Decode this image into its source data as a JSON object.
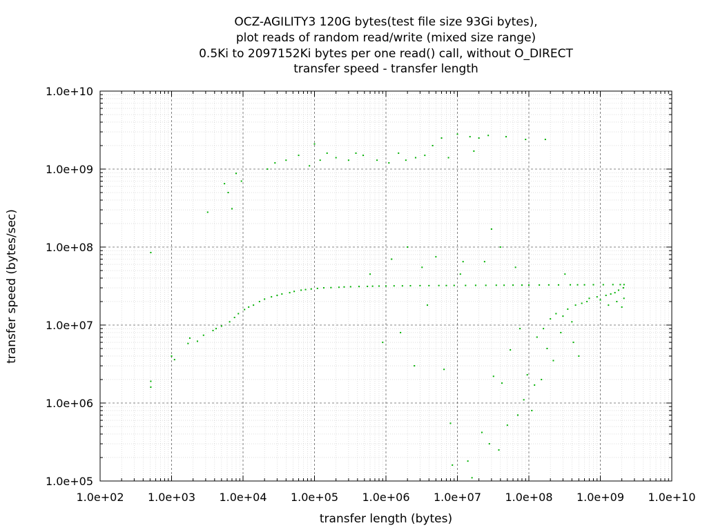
{
  "chart_data": {
    "type": "scatter",
    "title_lines": [
      "OCZ-AGILITY3 120G bytes(test file size 93Gi bytes),",
      "plot reads of random read/write (mixed size range)",
      "0.5Ki to 2097152Ki bytes per one read() call, without O_DIRECT",
      "transfer speed - transfer length"
    ],
    "xlabel": "transfer length (bytes)",
    "ylabel": "transfer speed (bytes/sec)",
    "x_scale": "log",
    "y_scale": "log",
    "xlim": [
      100,
      10000000000
    ],
    "ylim": [
      100000,
      10000000000
    ],
    "x_ticks": [
      {
        "value": 100,
        "label": "1.0e+02"
      },
      {
        "value": 1000,
        "label": "1.0e+03"
      },
      {
        "value": 10000,
        "label": "1.0e+04"
      },
      {
        "value": 100000,
        "label": "1.0e+05"
      },
      {
        "value": 1000000,
        "label": "1.0e+06"
      },
      {
        "value": 10000000,
        "label": "1.0e+07"
      },
      {
        "value": 100000000,
        "label": "1.0e+08"
      },
      {
        "value": 1000000000,
        "label": "1.0e+09"
      },
      {
        "value": 10000000000,
        "label": "1.0e+10"
      }
    ],
    "y_ticks": [
      {
        "value": 100000,
        "label": "1.0e+05"
      },
      {
        "value": 1000000,
        "label": "1.0e+06"
      },
      {
        "value": 10000000,
        "label": "1.0e+07"
      },
      {
        "value": 100000000,
        "label": "1.0e+08"
      },
      {
        "value": 1000000000,
        "label": "1.0e+09"
      },
      {
        "value": 10000000000,
        "label": "1.0e+10"
      }
    ],
    "grid": true,
    "minor_grid": true,
    "legend": "none",
    "marker_color": "#00b000",
    "points": [
      [
        512,
        85000000
      ],
      [
        512,
        1900000
      ],
      [
        512,
        1600000
      ],
      [
        1000,
        4000000
      ],
      [
        1100,
        3600000
      ],
      [
        1700,
        5800000
      ],
      [
        1800,
        6800000
      ],
      [
        2300,
        6200000
      ],
      [
        2800,
        7400000
      ],
      [
        3200,
        280000000
      ],
      [
        3800,
        8500000
      ],
      [
        4200,
        9000000
      ],
      [
        5000,
        9700000
      ],
      [
        5500,
        650000000
      ],
      [
        6200,
        500000000
      ],
      [
        6500,
        11000000
      ],
      [
        7000,
        310000000
      ],
      [
        7600,
        12500000
      ],
      [
        8000,
        880000000
      ],
      [
        8600,
        14000000
      ],
      [
        9500,
        700000000
      ],
      [
        10500,
        15800000
      ],
      [
        12000,
        17000000
      ],
      [
        14000,
        18000000
      ],
      [
        17000,
        20000000
      ],
      [
        20000,
        21500000
      ],
      [
        22000,
        1000000000
      ],
      [
        25000,
        23000000
      ],
      [
        28000,
        1200000000
      ],
      [
        30000,
        24000000
      ],
      [
        35000,
        25000000
      ],
      [
        40000,
        1300000000
      ],
      [
        45000,
        26000000
      ],
      [
        52000,
        27000000
      ],
      [
        60000,
        1500000000
      ],
      [
        65000,
        28000000
      ],
      [
        75000,
        28500000
      ],
      [
        85000,
        1100000000
      ],
      [
        90000,
        29000000
      ],
      [
        100000,
        2100000000
      ],
      [
        110000,
        29500000
      ],
      [
        120000,
        1300000000
      ],
      [
        135000,
        30000000
      ],
      [
        150000,
        1600000000
      ],
      [
        170000,
        30200000
      ],
      [
        200000,
        1400000000
      ],
      [
        220000,
        30500000
      ],
      [
        260000,
        30800000
      ],
      [
        300000,
        1300000000
      ],
      [
        320000,
        31000000
      ],
      [
        380000,
        1600000000
      ],
      [
        420000,
        31200000
      ],
      [
        480000,
        1500000000
      ],
      [
        550000,
        31300000
      ],
      [
        600000,
        45000000
      ],
      [
        650000,
        31500000
      ],
      [
        750000,
        1300000000
      ],
      [
        800000,
        31600000
      ],
      [
        900000,
        6000000
      ],
      [
        1000000,
        31700000
      ],
      [
        1100000,
        1200000000
      ],
      [
        1200000,
        70000000
      ],
      [
        1300000,
        31800000
      ],
      [
        1500000,
        1600000000
      ],
      [
        1600000,
        8000000
      ],
      [
        1700000,
        31800000
      ],
      [
        1900000,
        1300000000
      ],
      [
        2000000,
        100000000
      ],
      [
        2200000,
        31900000
      ],
      [
        2500000,
        3000000
      ],
      [
        2600000,
        1400000000
      ],
      [
        3000000,
        32000000
      ],
      [
        3200000,
        55000000
      ],
      [
        3500000,
        1500000000
      ],
      [
        3800000,
        18000000
      ],
      [
        4000000,
        32000000
      ],
      [
        4500000,
        2000000000
      ],
      [
        5000000,
        75000000
      ],
      [
        5500000,
        32100000
      ],
      [
        6000000,
        2500000000
      ],
      [
        6500000,
        2700000
      ],
      [
        7000000,
        32100000
      ],
      [
        7500000,
        1400000000
      ],
      [
        8000000,
        550000
      ],
      [
        8500000,
        160000
      ],
      [
        9000000,
        32200000
      ],
      [
        10000000,
        2800000000
      ],
      [
        11000000,
        45000000
      ],
      [
        12000000,
        65000000
      ],
      [
        13000000,
        32200000
      ],
      [
        14000000,
        180000
      ],
      [
        15000000,
        2600000000
      ],
      [
        16000000,
        110000
      ],
      [
        17000000,
        1700000000
      ],
      [
        18000000,
        32300000
      ],
      [
        20000000,
        2500000000
      ],
      [
        22000000,
        420000
      ],
      [
        24000000,
        65000000
      ],
      [
        25000000,
        32300000
      ],
      [
        27000000,
        2700000000
      ],
      [
        28000000,
        300000
      ],
      [
        30000000,
        170000000
      ],
      [
        32000000,
        2200000
      ],
      [
        35000000,
        32400000
      ],
      [
        38000000,
        250000
      ],
      [
        40000000,
        100000000
      ],
      [
        42000000,
        1800000
      ],
      [
        45000000,
        32400000
      ],
      [
        48000000,
        2600000000
      ],
      [
        50000000,
        520000
      ],
      [
        55000000,
        4800000
      ],
      [
        60000000,
        32500000
      ],
      [
        65000000,
        55000000
      ],
      [
        70000000,
        700000
      ],
      [
        75000000,
        9000000
      ],
      [
        80000000,
        32500000
      ],
      [
        85000000,
        1100000
      ],
      [
        90000000,
        2400000000
      ],
      [
        95000000,
        2300000
      ],
      [
        100000000,
        32600000
      ],
      [
        110000000,
        800000
      ],
      [
        120000000,
        1700000
      ],
      [
        130000000,
        7000000
      ],
      [
        140000000,
        32600000
      ],
      [
        150000000,
        2000000
      ],
      [
        160000000,
        9000000
      ],
      [
        170000000,
        2400000000
      ],
      [
        180000000,
        5000000
      ],
      [
        190000000,
        32700000
      ],
      [
        200000000,
        12000000
      ],
      [
        220000000,
        3500000
      ],
      [
        240000000,
        14000000
      ],
      [
        260000000,
        32700000
      ],
      [
        280000000,
        8000000
      ],
      [
        300000000,
        13000000
      ],
      [
        320000000,
        45000000
      ],
      [
        350000000,
        16000000
      ],
      [
        380000000,
        32800000
      ],
      [
        400000000,
        11000000
      ],
      [
        420000000,
        6000000
      ],
      [
        450000000,
        18000000
      ],
      [
        480000000,
        32800000
      ],
      [
        500000000,
        4000000
      ],
      [
        550000000,
        19000000
      ],
      [
        600000000,
        32800000
      ],
      [
        650000000,
        20000000
      ],
      [
        700000000,
        22000000
      ],
      [
        800000000,
        32900000
      ],
      [
        900000000,
        23000000
      ],
      [
        1000000000,
        21000000
      ],
      [
        1100000000,
        32900000
      ],
      [
        1200000000,
        24000000
      ],
      [
        1300000000,
        18000000
      ],
      [
        1400000000,
        25000000
      ],
      [
        1500000000,
        33000000
      ],
      [
        1600000000,
        26000000
      ],
      [
        1700000000,
        20000000
      ],
      [
        1800000000,
        28000000
      ],
      [
        1900000000,
        33000000
      ],
      [
        2000000000,
        17000000
      ],
      [
        2100000000,
        30000000
      ],
      [
        2140000000,
        22000000
      ],
      [
        2147000000,
        33000000
      ]
    ]
  }
}
